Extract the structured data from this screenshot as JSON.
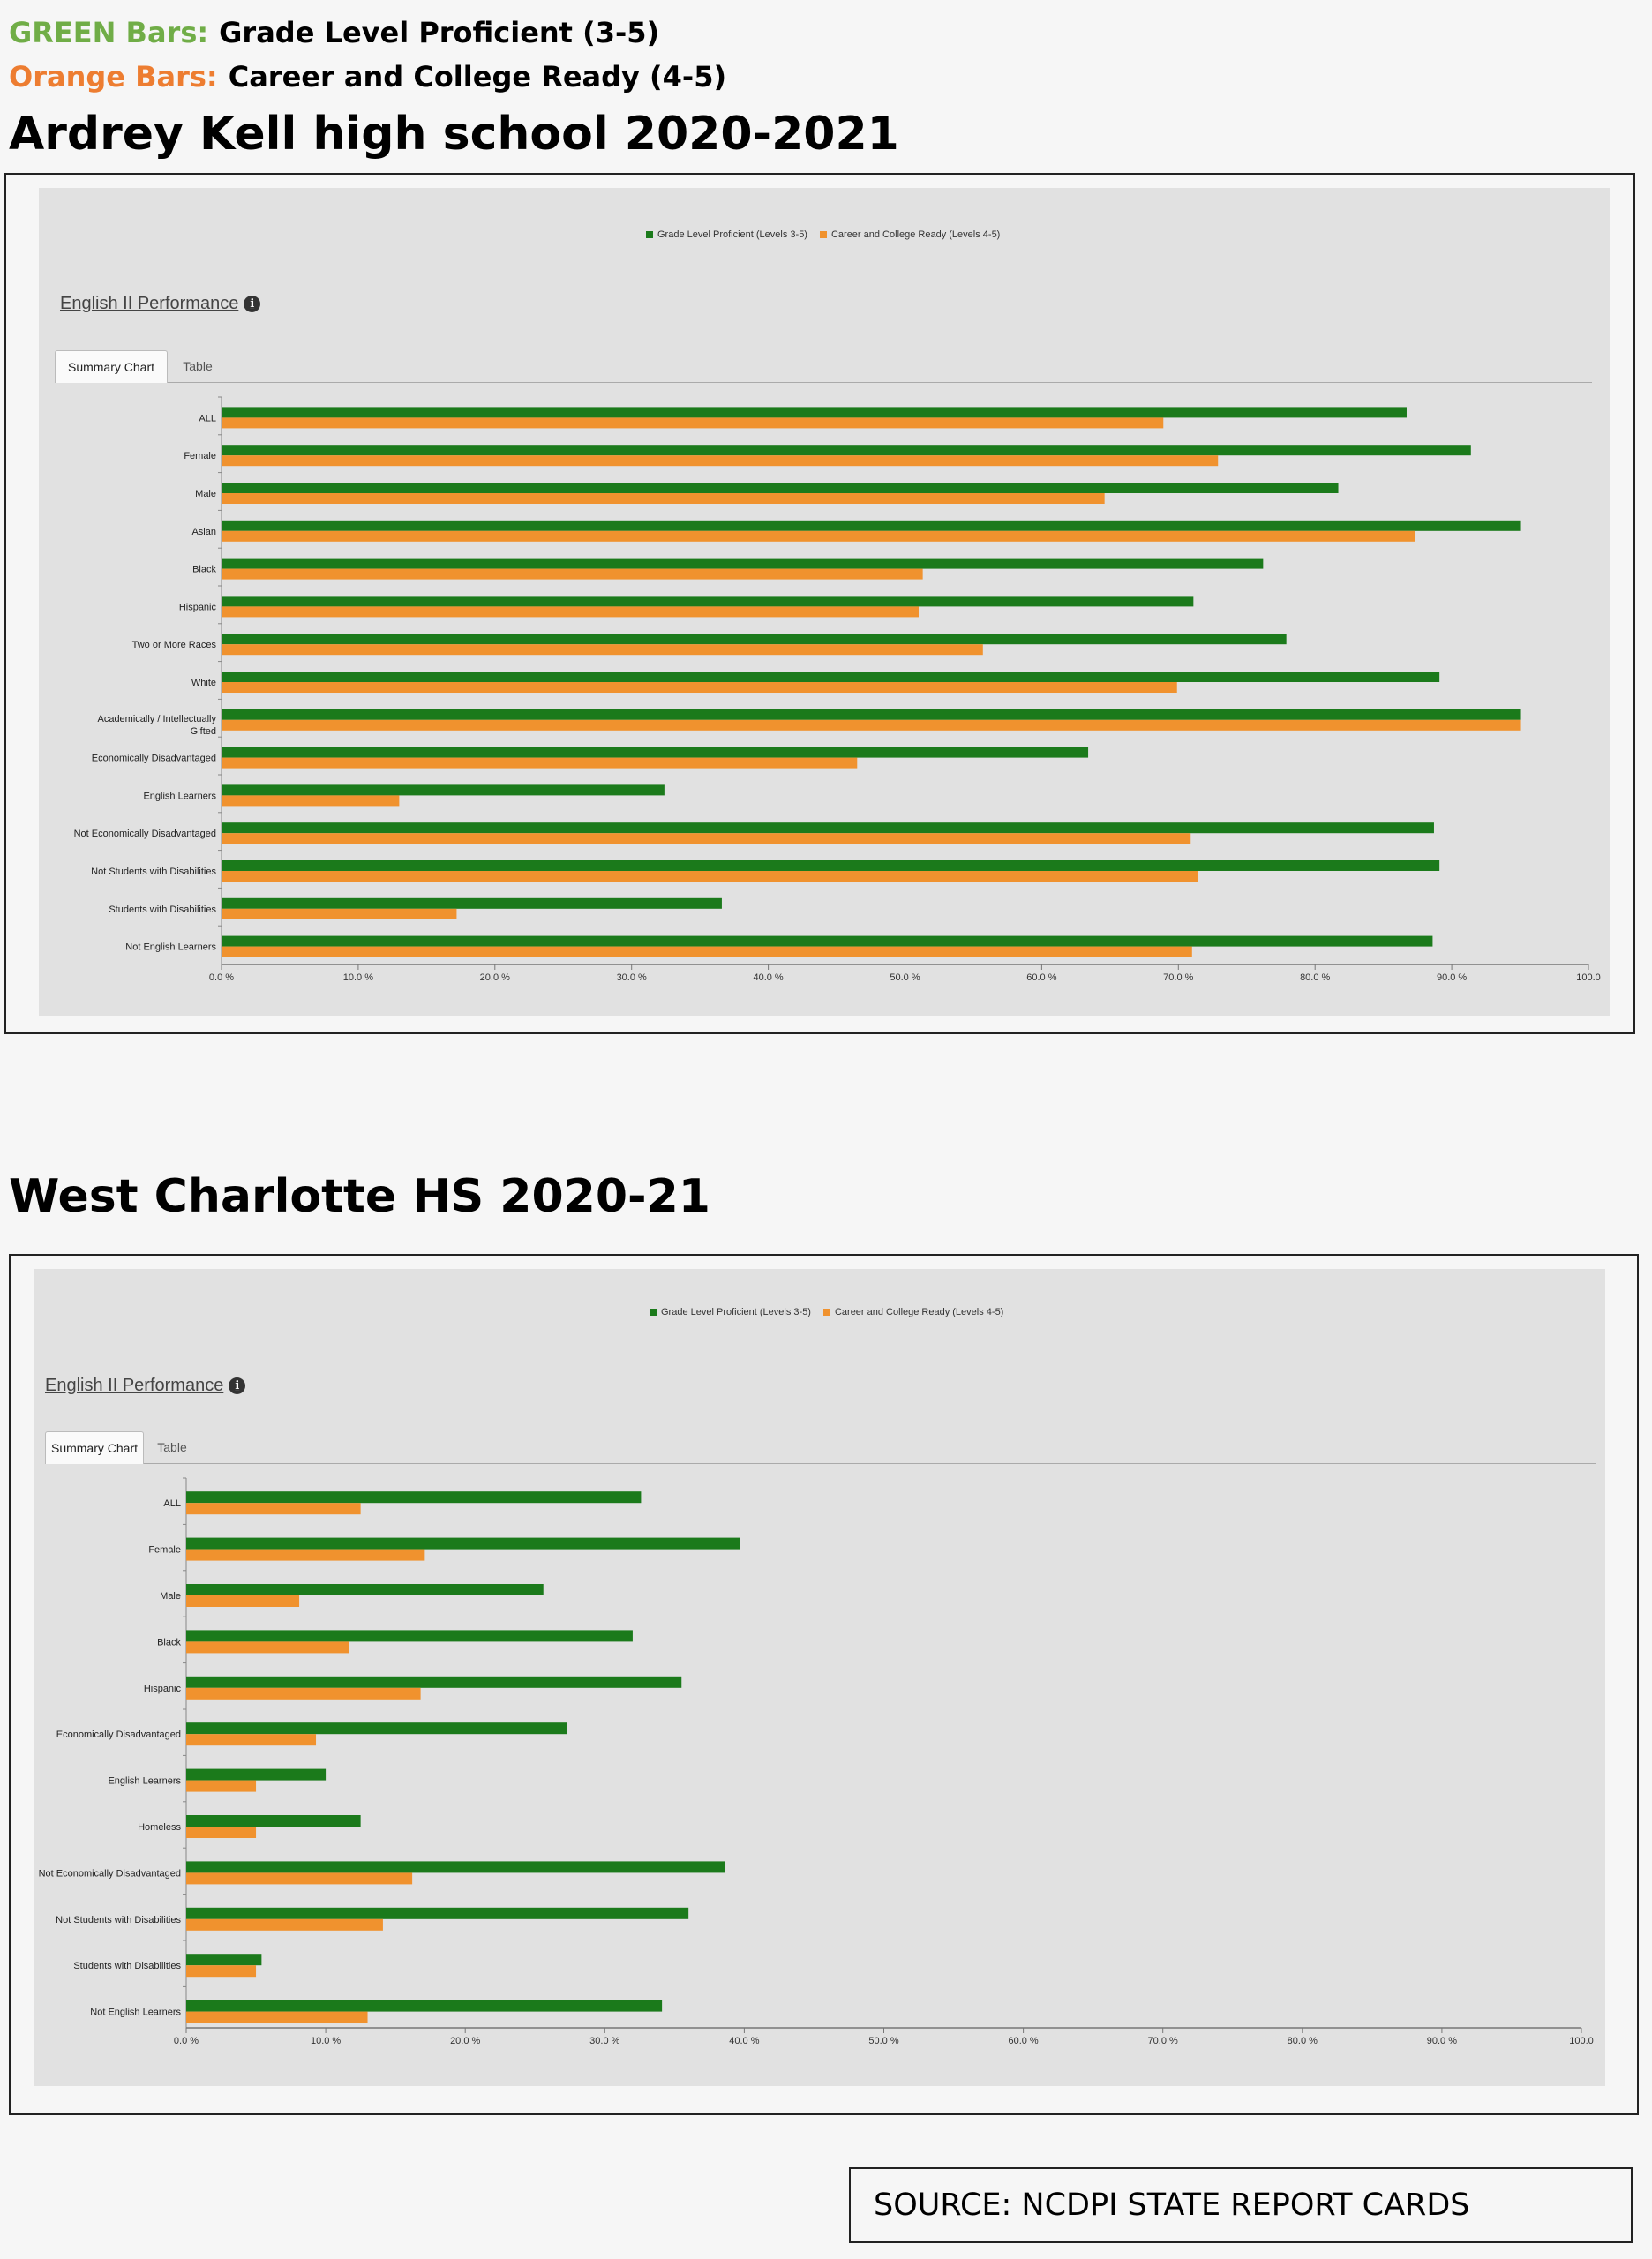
{
  "header": {
    "green_key": "GREEN Bars:",
    "green_desc": "Grade Level Proficient (3-5)",
    "orange_key": "Orange Bars:",
    "orange_desc": "Career and College Ready (4-5)",
    "green_color": "#70ad47",
    "orange_color": "#ed7d31"
  },
  "schools": [
    {
      "title": "Ardrey Kell high school 2020-2021",
      "performance_title": "English II Performance",
      "tabs": [
        "Summary Chart",
        "Table"
      ]
    },
    {
      "title": "West Charlotte HS  2020-21",
      "performance_title": "English II Performance",
      "tabs": [
        "Summary Chart",
        "Table"
      ]
    }
  ],
  "footer": {
    "source": "SOURCE:  NCDPI STATE REPORT CARDS"
  },
  "chart_data": [
    {
      "type": "bar",
      "orientation": "horizontal",
      "categories": [
        "ALL",
        "Female",
        "Male",
        "Asian",
        "Black",
        "Hispanic",
        "Two or More Races",
        "White",
        "Academically / Intellectually Gifted",
        "Economically Disadvantaged",
        "English Learners",
        "Not Economically Disadvantaged",
        "Not Students with Disabilities",
        "Students with Disabilities",
        "Not English Learners"
      ],
      "series": [
        {
          "name": "Grade Level Proficient (Levels 3-5)",
          "color": "#1b7a1b",
          "values": [
            86.7,
            91.4,
            81.7,
            95,
            76.2,
            71.1,
            77.9,
            89.1,
            95,
            63.4,
            32.4,
            88.7,
            89.1,
            36.6,
            88.6
          ]
        },
        {
          "name": "Career and College Ready (Levels 4-5)",
          "color": "#f0922e",
          "values": [
            68.9,
            72.9,
            64.6,
            87.3,
            51.3,
            51,
            55.7,
            69.9,
            95,
            46.5,
            13,
            70.9,
            71.4,
            17.2,
            71
          ]
        }
      ],
      "xlim": [
        0,
        100
      ],
      "xticks": [
        "0.0 %",
        "10.0 %",
        "20.0 %",
        "30.0 %",
        "40.0 %",
        "50.0 %",
        "60.0 %",
        "70.0 %",
        "80.0 %",
        "90.0 %",
        "100.0"
      ],
      "legend": "top-center"
    },
    {
      "type": "bar",
      "orientation": "horizontal",
      "categories": [
        "ALL",
        "Female",
        "Male",
        "Black",
        "Hispanic",
        "Economically Disadvantaged",
        "English Learners",
        "Homeless",
        "Not Economically Disadvantaged",
        "Not Students with Disabilities",
        "Students with Disabilities",
        "Not English Learners"
      ],
      "series": [
        {
          "name": "Grade Level Proficient (Levels 3-5)",
          "color": "#1b7a1b",
          "values": [
            32.6,
            39.7,
            25.6,
            32,
            35.5,
            27.3,
            10,
            12.5,
            38.6,
            36,
            5.4,
            34.1
          ]
        },
        {
          "name": "Career and College Ready (Levels 4-5)",
          "color": "#f0922e",
          "values": [
            12.5,
            17.1,
            8.1,
            11.7,
            16.8,
            9.3,
            5,
            5,
            16.2,
            14.1,
            5,
            13
          ]
        }
      ],
      "xlim": [
        0,
        100
      ],
      "xticks": [
        "0.0 %",
        "10.0 %",
        "20.0 %",
        "30.0 %",
        "40.0 %",
        "50.0 %",
        "60.0 %",
        "70.0 %",
        "80.0 %",
        "90.0 %",
        "100.0"
      ],
      "legend": "top-center"
    }
  ]
}
